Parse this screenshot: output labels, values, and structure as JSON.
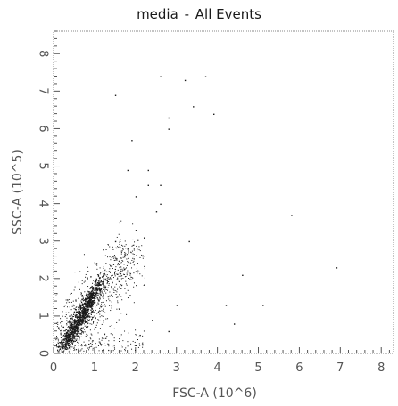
{
  "header": {
    "sample_name": "media",
    "separator": "-",
    "gate_link": "All Events"
  },
  "chart_data": {
    "type": "scatter",
    "title": "media - All Events",
    "xlabel": "FSC-A (10^6)",
    "ylabel": "SSC-A (10^5)",
    "xlim": [
      0,
      8.3
    ],
    "ylim": [
      0,
      8.6
    ],
    "xticks": [
      "0",
      "1",
      "2",
      "3",
      "4",
      "5",
      "6",
      "7",
      "8"
    ],
    "yticks": [
      "0",
      "1",
      "2",
      "3",
      "4",
      "5",
      "6",
      "7",
      "8"
    ],
    "grid": false,
    "legend": "none",
    "point_color": "#1a1a1a",
    "dense_core": {
      "description_free": true,
      "points": [
        [
          0.55,
          0.8
        ],
        [
          0.6,
          0.9
        ],
        [
          0.5,
          0.7
        ],
        [
          0.65,
          1.0
        ],
        [
          0.45,
          0.6
        ],
        [
          0.7,
          1.1
        ],
        [
          0.4,
          0.5
        ],
        [
          0.75,
          1.2
        ],
        [
          0.35,
          0.4
        ],
        [
          0.8,
          1.3
        ],
        [
          0.3,
          0.3
        ],
        [
          0.85,
          1.4
        ],
        [
          0.9,
          1.5
        ],
        [
          0.95,
          1.6
        ],
        [
          1.0,
          1.7
        ]
      ]
    },
    "sparse_points": [
      [
        1.5,
        6.9
      ],
      [
        2.6,
        7.4
      ],
      [
        3.2,
        7.3
      ],
      [
        3.7,
        7.4
      ],
      [
        3.4,
        6.6
      ],
      [
        3.9,
        6.4
      ],
      [
        2.8,
        6.3
      ],
      [
        2.8,
        6.0
      ],
      [
        1.9,
        5.7
      ],
      [
        1.8,
        4.9
      ],
      [
        2.3,
        4.9
      ],
      [
        2.3,
        4.5
      ],
      [
        2.6,
        4.5
      ],
      [
        2.6,
        4.0
      ],
      [
        2.0,
        4.2
      ],
      [
        2.5,
        3.8
      ],
      [
        1.6,
        3.5
      ],
      [
        2.0,
        3.3
      ],
      [
        2.2,
        3.1
      ],
      [
        1.5,
        3.0
      ],
      [
        1.8,
        2.8
      ],
      [
        3.3,
        3.0
      ],
      [
        5.8,
        3.7
      ],
      [
        6.9,
        2.3
      ],
      [
        4.6,
        2.1
      ],
      [
        4.2,
        1.3
      ],
      [
        5.1,
        1.3
      ],
      [
        4.4,
        0.8
      ],
      [
        3.0,
        1.3
      ],
      [
        2.8,
        0.6
      ],
      [
        2.4,
        0.9
      ],
      [
        2.1,
        0.5
      ]
    ]
  }
}
